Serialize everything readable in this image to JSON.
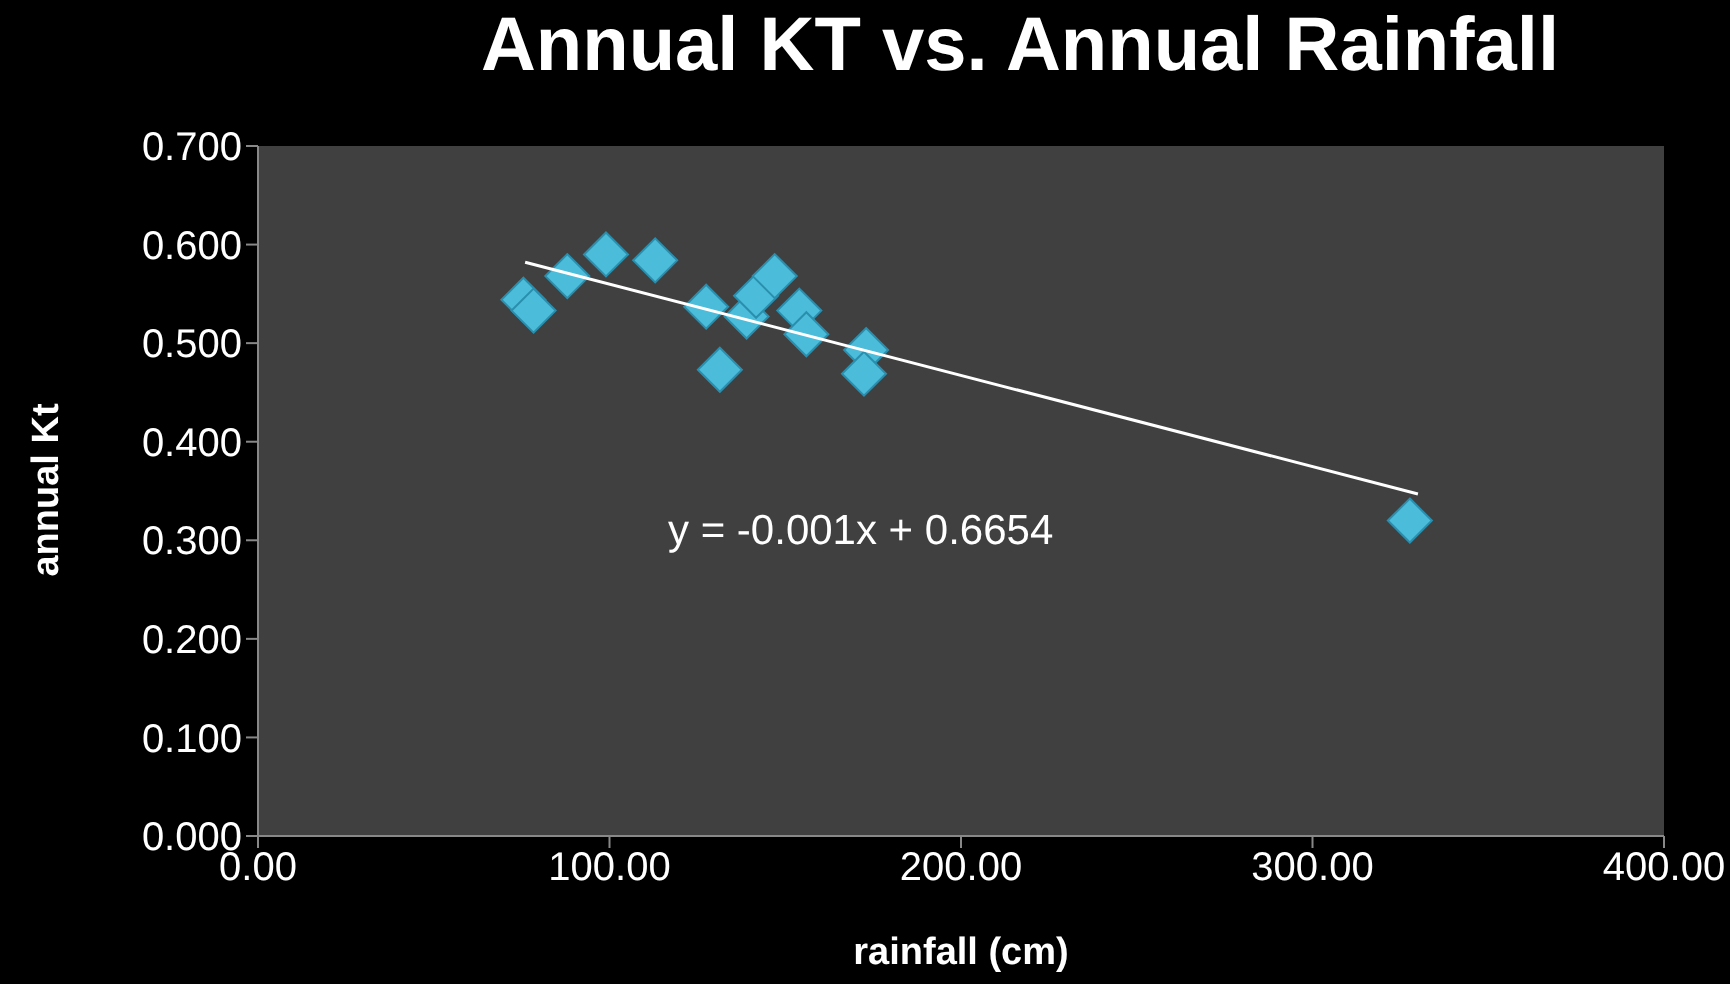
{
  "chart_data": {
    "type": "scatter",
    "title": "Annual KT vs. Annual Rainfall",
    "xlabel": "rainfall (cm)",
    "ylabel": "annual Kt",
    "annotations": [
      "y = -0.001x + 0.6654"
    ],
    "marker": "diamond",
    "xlim": [
      0,
      400
    ],
    "xticks": [
      {
        "value": 0,
        "label": "0.00"
      },
      {
        "value": 100,
        "label": "100.00"
      },
      {
        "value": 200,
        "label": "200.00"
      },
      {
        "value": 300,
        "label": "300.00"
      },
      {
        "value": 400,
        "label": "400.00"
      }
    ],
    "ylim": [
      0,
      0.7
    ],
    "yticks": [
      {
        "value": 0,
        "label": "0.000"
      },
      {
        "value": 0.1,
        "label": "0.100"
      },
      {
        "value": 0.2,
        "label": "0.200"
      },
      {
        "value": 0.3,
        "label": "0.300"
      },
      {
        "value": 0.4,
        "label": "0.400"
      },
      {
        "value": 0.5,
        "label": "0.500"
      },
      {
        "value": 0.6,
        "label": "0.600"
      },
      {
        "value": 0.7,
        "label": "0.700"
      }
    ],
    "series": [
      {
        "color": "#4bbcd9",
        "x": [
          75.5,
          78.4,
          88,
          99,
          113,
          127.5,
          131.4,
          139,
          141.7,
          147,
          154,
          156,
          173,
          172.4,
          327.7
        ],
        "values": [
          0.544,
          0.533,
          0.568,
          0.59,
          0.584,
          0.537,
          0.473,
          0.527,
          0.548,
          0.568,
          0.533,
          0.509,
          0.493,
          0.469,
          0.32
        ]
      },
      {
        "type": "line",
        "color": "#ffffff",
        "marker": "none",
        "x": [
          76,
          330
        ],
        "values": [
          0.582,
          0.347
        ]
      }
    ]
  }
}
